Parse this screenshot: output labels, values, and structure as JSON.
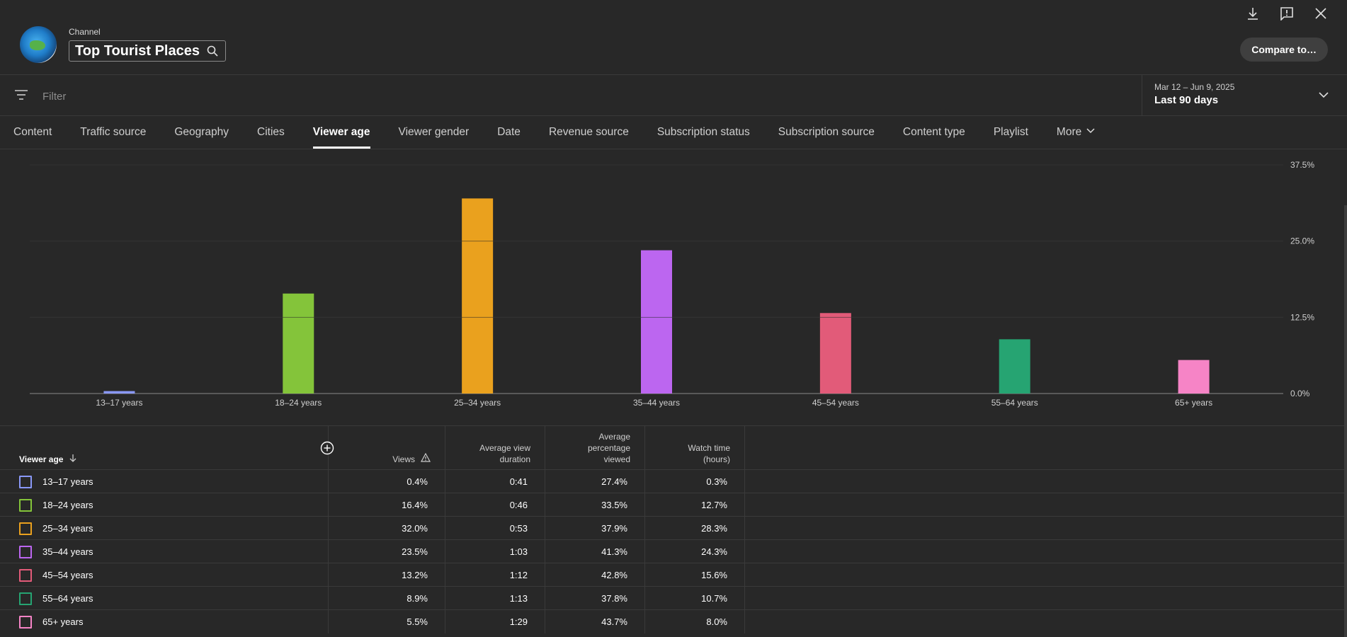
{
  "header": {
    "channel_label": "Channel",
    "channel_name": "Top Tourist Places",
    "avatar_text": "Top Tourist Places",
    "compare_label": "Compare to…",
    "icons": [
      "download-icon",
      "feedback-icon",
      "close-icon"
    ]
  },
  "filter": {
    "placeholder": "Filter"
  },
  "date": {
    "range": "Mar 12 – Jun 9, 2025",
    "label": "Last 90 days"
  },
  "tabs": [
    {
      "label": "Content",
      "active": false
    },
    {
      "label": "Traffic source",
      "active": false
    },
    {
      "label": "Geography",
      "active": false
    },
    {
      "label": "Cities",
      "active": false
    },
    {
      "label": "Viewer age",
      "active": true
    },
    {
      "label": "Viewer gender",
      "active": false
    },
    {
      "label": "Date",
      "active": false
    },
    {
      "label": "Revenue source",
      "active": false
    },
    {
      "label": "Subscription status",
      "active": false
    },
    {
      "label": "Subscription source",
      "active": false
    },
    {
      "label": "Content type",
      "active": false
    },
    {
      "label": "Playlist",
      "active": false
    },
    {
      "label": "More",
      "active": false
    }
  ],
  "chart_data": {
    "type": "bar",
    "categories": [
      "13–17 years",
      "18–24 years",
      "25–34 years",
      "35–44 years",
      "45–54 years",
      "55–64 years",
      "65+ years"
    ],
    "values": [
      0.4,
      16.4,
      32.0,
      23.5,
      13.2,
      8.9,
      5.5
    ],
    "colors": [
      "#8a98f8",
      "#84c43a",
      "#eaa11e",
      "#bc66f0",
      "#e25b79",
      "#26a472",
      "#f684c6"
    ],
    "ylim": [
      0,
      37.5
    ],
    "y_ticks": [
      "0.0%",
      "12.5%",
      "25.0%",
      "37.5%"
    ],
    "y_axis_side": "right",
    "grid": true,
    "title": "",
    "xlabel": "",
    "ylabel": ""
  },
  "table": {
    "columns": {
      "age": "Viewer age",
      "views": "Views",
      "avd": [
        "Average view",
        "duration"
      ],
      "apv": [
        "Average",
        "percentage",
        "viewed"
      ],
      "wt": [
        "Watch time",
        "(hours)"
      ]
    },
    "rows": [
      {
        "age": "13–17 years",
        "views": "0.4%",
        "avd": "0:41",
        "apv": "27.4%",
        "wt": "0.3%"
      },
      {
        "age": "18–24 years",
        "views": "16.4%",
        "avd": "0:46",
        "apv": "33.5%",
        "wt": "12.7%"
      },
      {
        "age": "25–34 years",
        "views": "32.0%",
        "avd": "0:53",
        "apv": "37.9%",
        "wt": "28.3%"
      },
      {
        "age": "35–44 years",
        "views": "23.5%",
        "avd": "1:03",
        "apv": "41.3%",
        "wt": "24.3%"
      },
      {
        "age": "45–54 years",
        "views": "13.2%",
        "avd": "1:12",
        "apv": "42.8%",
        "wt": "15.6%"
      },
      {
        "age": "55–64 years",
        "views": "8.9%",
        "avd": "1:13",
        "apv": "37.8%",
        "wt": "10.7%"
      },
      {
        "age": "65+ years",
        "views": "5.5%",
        "avd": "1:29",
        "apv": "43.7%",
        "wt": "8.0%"
      }
    ]
  }
}
